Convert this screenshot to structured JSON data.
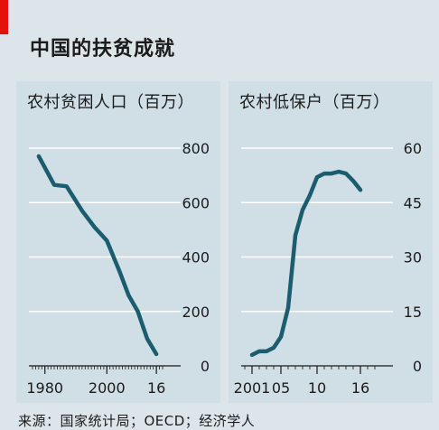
{
  "title": "中国的扶贫成就",
  "source": "来源：国家统计局；OECD；经济学人",
  "colors": {
    "line": "#1b5c6e",
    "accent": "#e3120b",
    "panel": "#d0dee5",
    "background": "#dce5e9",
    "grid": "#ffffff"
  },
  "chart_data": [
    {
      "type": "line",
      "title": "农村贫困人口（百万）",
      "x": [
        1978,
        1983,
        1987,
        1992,
        1996,
        2000,
        2004,
        2007,
        2010,
        2013,
        2016
      ],
      "series": [
        {
          "values": [
            770,
            665,
            660,
            570,
            510,
            460,
            350,
            260,
            200,
            100,
            43
          ]
        }
      ],
      "xlim": [
        1976,
        2018
      ],
      "ylim": [
        0,
        800
      ],
      "x_tick_labels": [
        "1980",
        "2000",
        "16"
      ],
      "y_tick_labels": [
        "800",
        "600",
        "400",
        "200",
        "0"
      ],
      "grid": "horizontal",
      "y_axis_side": "right"
    },
    {
      "type": "line",
      "title": "农村低保户（百万）",
      "x": [
        2001,
        2002,
        2003,
        2004,
        2005,
        2006,
        2007,
        2008,
        2009,
        2010,
        2011,
        2012,
        2013,
        2014,
        2015,
        2016
      ],
      "series": [
        {
          "values": [
            3,
            4,
            4,
            5,
            8,
            16,
            36,
            43,
            47,
            52,
            53,
            53,
            53.5,
            53,
            51,
            48.5
          ]
        }
      ],
      "xlim": [
        2000,
        2018
      ],
      "ylim": [
        0,
        60
      ],
      "x_tick_labels": [
        "2001",
        "05",
        "10",
        "16"
      ],
      "y_tick_labels": [
        "60",
        "45",
        "30",
        "15",
        "0"
      ],
      "grid": "horizontal",
      "y_axis_side": "right"
    }
  ]
}
